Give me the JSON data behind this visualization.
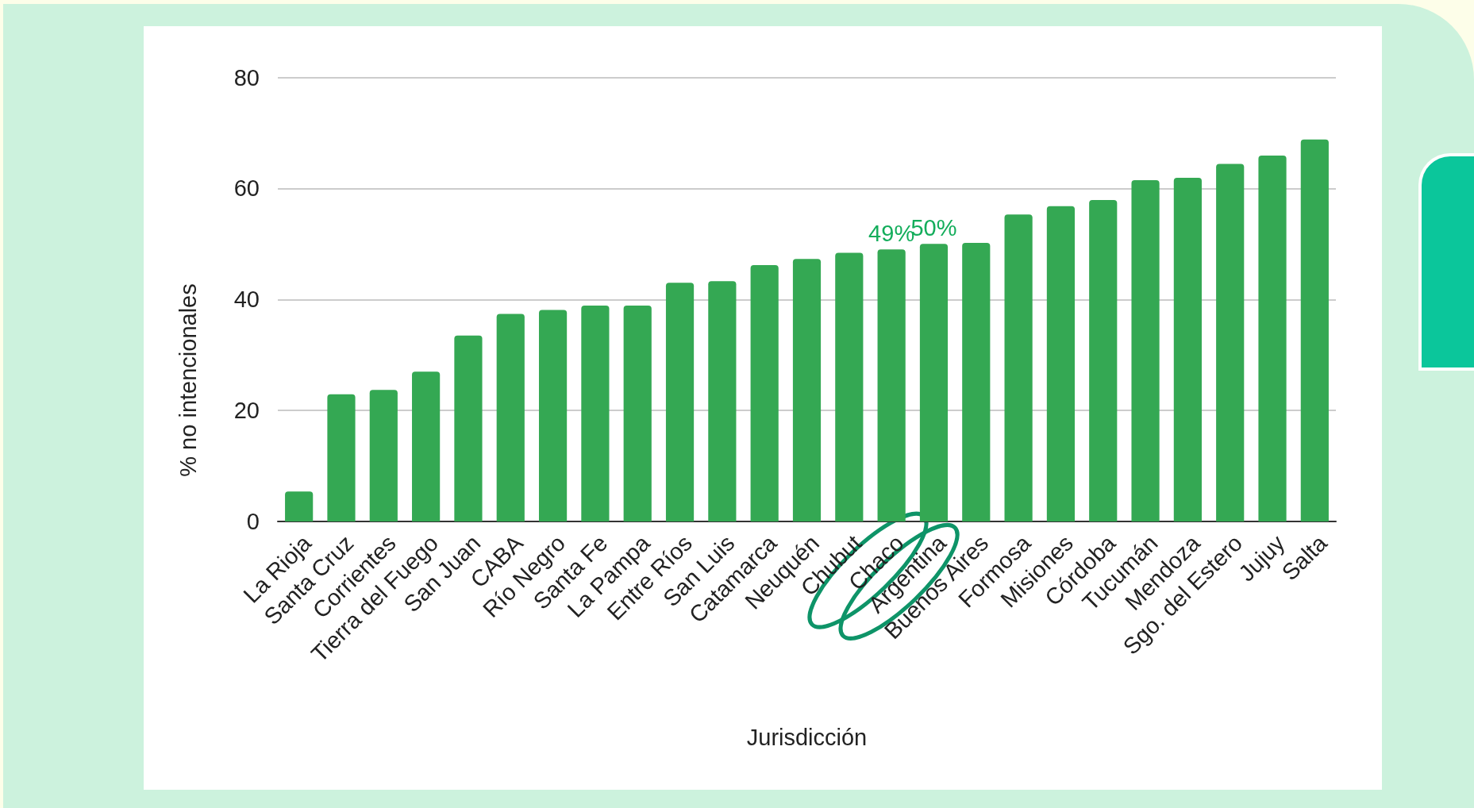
{
  "chart_data": {
    "type": "bar",
    "xlabel": "Jurisdicción",
    "ylabel": "% no intencionales",
    "categories": [
      "La Rioja",
      "Santa Cruz",
      "Corrientes",
      "Tierra del Fuego",
      "San Juan",
      "CABA",
      "Río Negro",
      "Santa Fe",
      "La Pampa",
      "Entre Ríos",
      "San Luis",
      "Catamarca",
      "Neuquén",
      "Chubut",
      "Chaco",
      "Argentina",
      "Buenos Aires",
      "Formosa",
      "Misiones",
      "Córdoba",
      "Tucumán",
      "Mendoza",
      "Sgo. del Estero",
      "Jujuy",
      "Salta"
    ],
    "values": [
      5.4,
      22.9,
      23.7,
      27.0,
      33.5,
      37.4,
      38.1,
      38.9,
      38.9,
      43.0,
      43.3,
      46.2,
      47.3,
      48.4,
      49,
      50,
      50.2,
      55.3,
      56.8,
      57.9,
      61.5,
      61.9,
      64.4,
      65.9,
      68.8
    ],
    "value_labels": [
      null,
      null,
      null,
      null,
      null,
      null,
      null,
      null,
      null,
      null,
      null,
      null,
      null,
      null,
      "49%",
      "50%",
      null,
      null,
      null,
      null,
      null,
      null,
      null,
      null,
      null
    ],
    "color": "#34a853",
    "ylim": [
      0,
      80
    ],
    "yticks": [
      0,
      20,
      40,
      60,
      80
    ],
    "grid": "y"
  }
}
